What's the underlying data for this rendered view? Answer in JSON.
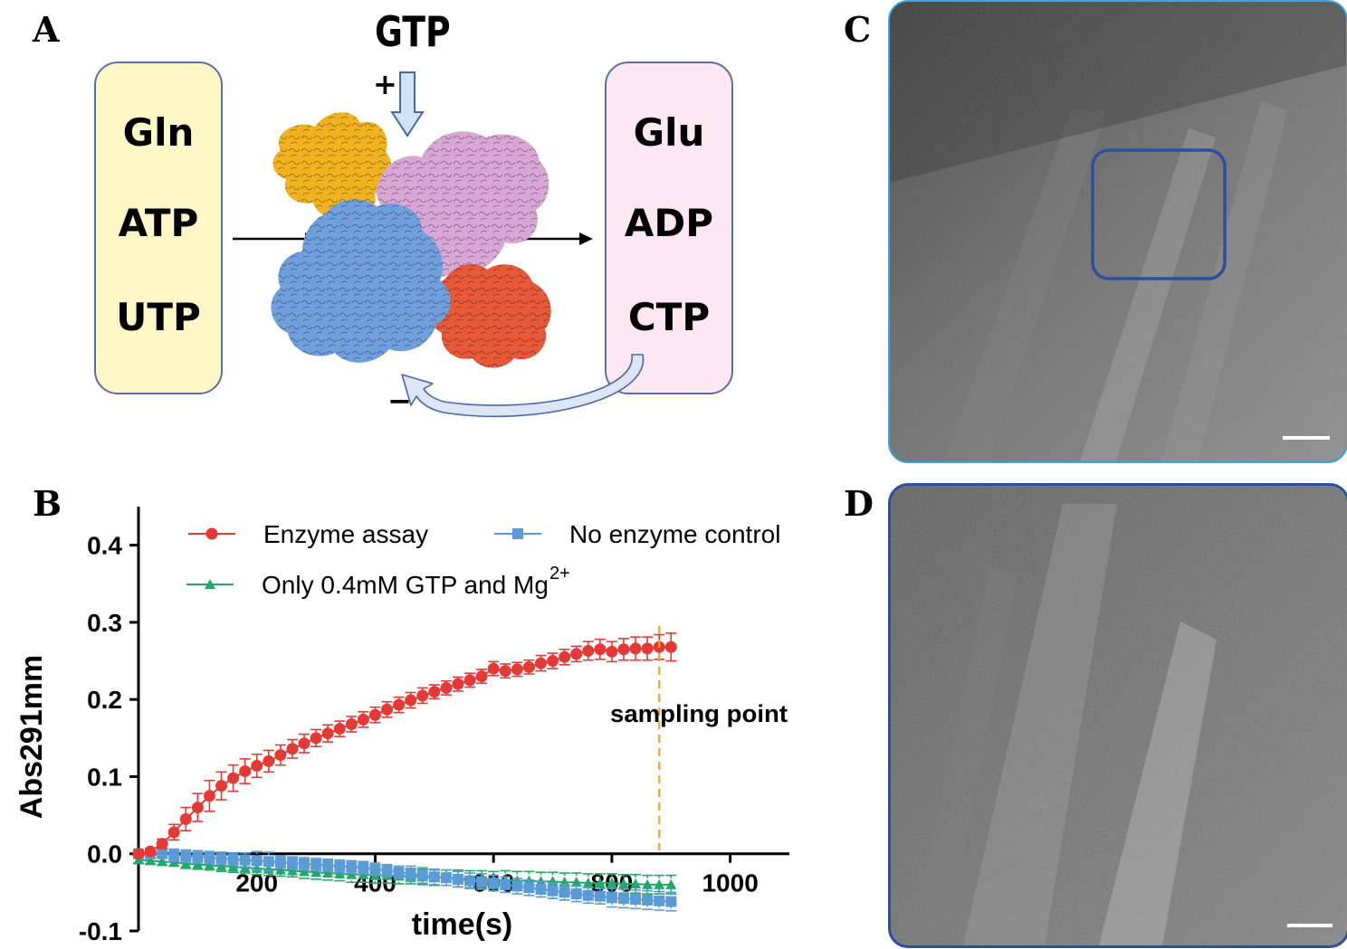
{
  "panels": {
    "a": "A",
    "b": "B",
    "c": "C",
    "d": "D"
  },
  "diagram": {
    "gtp": "GTP",
    "plus": "+",
    "minus": "−",
    "substrates": [
      "Gln",
      "ATP",
      "UTP"
    ],
    "products": [
      "Glu",
      "ADP",
      "CTP"
    ],
    "colors": {
      "substrate_box": "#fdf8c6",
      "product_box": "#fde8f1",
      "arrow_fill": "#cfe4f7",
      "arrow_stroke": "#4a67a8",
      "subunit_orange": "#f0b21e",
      "subunit_pink": "#d9a7d6",
      "subunit_blue": "#6f9fdc",
      "subunit_red": "#e8593a"
    }
  },
  "chart_data": {
    "type": "line",
    "xlabel": "time(s)",
    "ylabel": "Abs291mm",
    "xlim": [
      0,
      1100
    ],
    "ylim": [
      -0.1,
      0.45
    ],
    "xticks": [
      200,
      400,
      600,
      800,
      1000
    ],
    "yticks": [
      -0.1,
      0.0,
      0.1,
      0.2,
      0.3,
      0.4
    ],
    "ytick_labels": [
      "-0.1",
      "0.0",
      "0.1",
      "0.2",
      "0.3",
      "0.4"
    ],
    "legend": {
      "placement": "top",
      "sup": "2+"
    },
    "annotation": {
      "label": "sampling point",
      "x": 880,
      "color": "#f4a623"
    },
    "series": [
      {
        "name": "Enzyme assay",
        "color": "#e53935",
        "marker": "circle",
        "x": [
          0,
          20,
          40,
          60,
          80,
          100,
          120,
          140,
          160,
          180,
          200,
          220,
          240,
          260,
          280,
          300,
          320,
          340,
          360,
          380,
          400,
          420,
          440,
          460,
          480,
          500,
          520,
          540,
          560,
          580,
          600,
          620,
          640,
          660,
          680,
          700,
          720,
          740,
          760,
          780,
          800,
          820,
          840,
          860,
          880,
          900
        ],
        "y": [
          0.0,
          0.003,
          0.013,
          0.028,
          0.045,
          0.06,
          0.075,
          0.088,
          0.098,
          0.107,
          0.114,
          0.12,
          0.128,
          0.136,
          0.143,
          0.15,
          0.156,
          0.162,
          0.168,
          0.174,
          0.18,
          0.187,
          0.193,
          0.199,
          0.205,
          0.21,
          0.215,
          0.22,
          0.225,
          0.23,
          0.24,
          0.237,
          0.239,
          0.242,
          0.247,
          0.25,
          0.255,
          0.259,
          0.263,
          0.265,
          0.262,
          0.265,
          0.266,
          0.266,
          0.268,
          0.268
        ],
        "err": [
          0.003,
          0.004,
          0.006,
          0.01,
          0.015,
          0.018,
          0.02,
          0.018,
          0.017,
          0.016,
          0.015,
          0.014,
          0.013,
          0.012,
          0.012,
          0.011,
          0.011,
          0.01,
          0.01,
          0.01,
          0.01,
          0.01,
          0.01,
          0.01,
          0.01,
          0.009,
          0.009,
          0.009,
          0.009,
          0.009,
          0.009,
          0.009,
          0.009,
          0.009,
          0.01,
          0.01,
          0.01,
          0.01,
          0.012,
          0.013,
          0.013,
          0.014,
          0.015,
          0.015,
          0.016,
          0.018
        ]
      },
      {
        "name": "No enzyme control",
        "color": "#5b9bd5",
        "marker": "square",
        "x": [
          0,
          20,
          40,
          60,
          80,
          100,
          120,
          140,
          160,
          180,
          200,
          220,
          240,
          260,
          280,
          300,
          320,
          340,
          360,
          380,
          400,
          420,
          440,
          460,
          480,
          500,
          520,
          540,
          560,
          580,
          600,
          620,
          640,
          660,
          680,
          700,
          720,
          740,
          760,
          780,
          800,
          820,
          840,
          860,
          880,
          900
        ],
        "y": [
          0.0,
          0.0,
          0.0,
          -0.002,
          -0.003,
          -0.004,
          -0.005,
          -0.006,
          -0.007,
          -0.008,
          -0.009,
          -0.01,
          -0.011,
          -0.012,
          -0.013,
          -0.014,
          -0.015,
          -0.016,
          -0.017,
          -0.018,
          -0.02,
          -0.022,
          -0.024,
          -0.026,
          -0.028,
          -0.03,
          -0.031,
          -0.033,
          -0.035,
          -0.036,
          -0.038,
          -0.04,
          -0.042,
          -0.044,
          -0.046,
          -0.048,
          -0.05,
          -0.052,
          -0.054,
          -0.055,
          -0.057,
          -0.058,
          -0.059,
          -0.06,
          -0.061,
          -0.062
        ],
        "err": [
          0.004,
          0.004,
          0.006,
          0.008,
          0.008,
          0.008,
          0.008,
          0.008,
          0.008,
          0.009,
          0.012,
          0.012,
          0.008,
          0.008,
          0.008,
          0.008,
          0.008,
          0.008,
          0.008,
          0.008,
          0.008,
          0.008,
          0.008,
          0.01,
          0.01,
          0.01,
          0.01,
          0.01,
          0.01,
          0.01,
          0.01,
          0.01,
          0.01,
          0.01,
          0.01,
          0.01,
          0.01,
          0.01,
          0.01,
          0.01,
          0.012,
          0.012,
          0.012,
          0.012,
          0.012,
          0.012
        ]
      },
      {
        "name": "Only 0.4mM GTP and Mg",
        "color": "#22a86b",
        "marker": "triangle",
        "x": [
          0,
          20,
          40,
          60,
          80,
          100,
          120,
          140,
          160,
          180,
          200,
          220,
          240,
          260,
          280,
          300,
          320,
          340,
          360,
          380,
          400,
          420,
          440,
          460,
          480,
          500,
          520,
          540,
          560,
          580,
          600,
          620,
          640,
          660,
          680,
          700,
          720,
          740,
          760,
          780,
          800,
          820,
          840,
          860,
          880,
          900
        ],
        "y": [
          -0.008,
          -0.009,
          -0.01,
          -0.011,
          -0.013,
          -0.014,
          -0.015,
          -0.016,
          -0.017,
          -0.018,
          -0.019,
          -0.02,
          -0.021,
          -0.022,
          -0.023,
          -0.024,
          -0.025,
          -0.026,
          -0.027,
          -0.027,
          -0.028,
          -0.028,
          -0.029,
          -0.029,
          -0.03,
          -0.031,
          -0.031,
          -0.032,
          -0.033,
          -0.033,
          -0.034,
          -0.034,
          -0.035,
          -0.035,
          -0.036,
          -0.036,
          -0.037,
          -0.037,
          -0.038,
          -0.038,
          -0.038,
          -0.039,
          -0.039,
          -0.04,
          -0.04,
          -0.04
        ],
        "err": [
          0.004,
          0.004,
          0.005,
          0.005,
          0.006,
          0.006,
          0.006,
          0.007,
          0.007,
          0.007,
          0.008,
          0.008,
          0.008,
          0.008,
          0.009,
          0.009,
          0.009,
          0.009,
          0.01,
          0.01,
          0.01,
          0.01,
          0.01,
          0.01,
          0.01,
          0.01,
          0.01,
          0.011,
          0.011,
          0.011,
          0.011,
          0.012,
          0.012,
          0.012,
          0.012,
          0.012,
          0.012,
          0.012,
          0.012,
          0.012,
          0.012,
          0.012,
          0.012,
          0.012,
          0.012,
          0.012
        ]
      }
    ]
  },
  "micrographs": {
    "c_border": "#38a7e0",
    "d_border": "#2f4ea0",
    "roi_border": "#2f4ea0"
  }
}
